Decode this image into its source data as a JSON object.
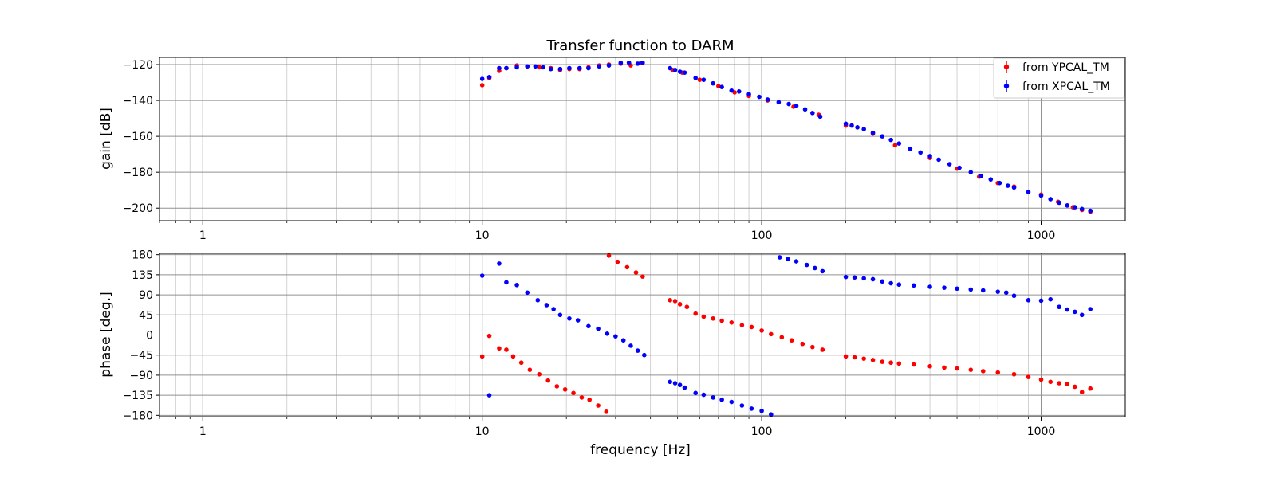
{
  "chart_data": {
    "type": "scatter",
    "title": "Transfer function to DARM",
    "xlabel": "frequency [Hz]",
    "xscale": "log",
    "xlim": [
      0.7,
      2000
    ],
    "x_ticks": [
      "1",
      "10",
      "100",
      "1000"
    ],
    "grid": true,
    "legend_position": "top-right",
    "legend": [
      {
        "label": "from YPCAL_TM",
        "color": "#ff0000"
      },
      {
        "label": "from XPCAL_TM",
        "color": "#0000ff"
      }
    ],
    "panels": [
      {
        "name": "gain",
        "ylabel": "gain [dB]",
        "ylim": [
          -207,
          -116
        ],
        "y_ticks": [
          -120,
          -140,
          -160,
          -180,
          -200
        ],
        "y_tick_labels": [
          "−120",
          "−140",
          "−160",
          "−180",
          "−200"
        ],
        "series": [
          {
            "name": "from YPCAL_TM",
            "color": "#ff0000",
            "points": [
              [
                10.0,
                -131.5
              ],
              [
                10.6,
                -127.5
              ],
              [
                11.5,
                -123.5
              ],
              [
                12.2,
                -122.0
              ],
              [
                13.3,
                -120.5
              ],
              [
                14.5,
                -121.0
              ],
              [
                16.0,
                -121.5
              ],
              [
                17.6,
                -122.0
              ],
              [
                19.0,
                -123.0
              ],
              [
                20.5,
                -122.5
              ],
              [
                22.3,
                -122.5
              ],
              [
                24.0,
                -121.5
              ],
              [
                26.2,
                -120.5
              ],
              [
                28.4,
                -120.0
              ],
              [
                31.3,
                -119.5
              ],
              [
                34.0,
                -120.5
              ],
              [
                37.0,
                -119.0
              ],
              [
                48.0,
                -123.0
              ],
              [
                52.0,
                -124.5
              ],
              [
                60.0,
                -128.5
              ],
              [
                70.0,
                -132.0
              ],
              [
                80.0,
                -135.5
              ],
              [
                90.0,
                -137.5
              ],
              [
                105.0,
                -140.0
              ],
              [
                130.0,
                -143.5
              ],
              [
                160.0,
                -148.0
              ],
              [
                200.0,
                -154.0
              ],
              [
                250.0,
                -158.5
              ],
              [
                300.0,
                -165.0
              ],
              [
                400.0,
                -172.0
              ],
              [
                500.0,
                -178.0
              ],
              [
                600.0,
                -182.5
              ],
              [
                700.0,
                -186.0
              ],
              [
                800.0,
                -188.0
              ],
              [
                1000.0,
                -192.5
              ],
              [
                1150.0,
                -196.5
              ],
              [
                1300.0,
                -199.5
              ],
              [
                1400.0,
                -201.0
              ],
              [
                1500.0,
                -202.0
              ]
            ]
          },
          {
            "name": "from XPCAL_TM",
            "color": "#0000ff",
            "points": [
              [
                10.0,
                -128.0
              ],
              [
                10.6,
                -127.0
              ],
              [
                11.5,
                -122.0
              ],
              [
                12.2,
                -122.0
              ],
              [
                13.3,
                -121.5
              ],
              [
                14.5,
                -121.0
              ],
              [
                15.5,
                -121.0
              ],
              [
                16.5,
                -121.5
              ],
              [
                17.6,
                -122.5
              ],
              [
                19.0,
                -122.5
              ],
              [
                20.5,
                -122.0
              ],
              [
                22.3,
                -122.0
              ],
              [
                24.0,
                -122.0
              ],
              [
                26.2,
                -121.0
              ],
              [
                28.4,
                -120.5
              ],
              [
                31.3,
                -119.0
              ],
              [
                33.5,
                -119.0
              ],
              [
                36.0,
                -119.5
              ],
              [
                37.5,
                -119.0
              ],
              [
                47.0,
                -122.0
              ],
              [
                49.0,
                -123.0
              ],
              [
                51.0,
                -124.0
              ],
              [
                53.0,
                -124.5
              ],
              [
                58.0,
                -127.5
              ],
              [
                62.0,
                -128.5
              ],
              [
                67.0,
                -130.5
              ],
              [
                72.0,
                -132.5
              ],
              [
                78.0,
                -134.5
              ],
              [
                83.0,
                -135.0
              ],
              [
                90.0,
                -136.5
              ],
              [
                98.0,
                -138.0
              ],
              [
                105.0,
                -139.5
              ],
              [
                115.0,
                -141.0
              ],
              [
                125.0,
                -142.0
              ],
              [
                133.0,
                -143.0
              ],
              [
                143.0,
                -145.0
              ],
              [
                152.0,
                -147.0
              ],
              [
                162.0,
                -149.0
              ],
              [
                200.0,
                -153.0
              ],
              [
                210.0,
                -154.0
              ],
              [
                220.0,
                -155.0
              ],
              [
                232.0,
                -156.0
              ],
              [
                250.0,
                -158.0
              ],
              [
                270.0,
                -160.0
              ],
              [
                290.0,
                -162.0
              ],
              [
                310.0,
                -164.0
              ],
              [
                340.0,
                -167.0
              ],
              [
                370.0,
                -169.0
              ],
              [
                400.0,
                -171.0
              ],
              [
                430.0,
                -173.0
              ],
              [
                470.0,
                -175.5
              ],
              [
                510.0,
                -177.5
              ],
              [
                560.0,
                -180.0
              ],
              [
                610.0,
                -182.0
              ],
              [
                660.0,
                -184.0
              ],
              [
                710.0,
                -186.0
              ],
              [
                760.0,
                -187.5
              ],
              [
                800.0,
                -188.5
              ],
              [
                900.0,
                -191.0
              ],
              [
                1000.0,
                -193.0
              ],
              [
                1080.0,
                -195.0
              ],
              [
                1160.0,
                -197.0
              ],
              [
                1240.0,
                -198.5
              ],
              [
                1320.0,
                -199.5
              ],
              [
                1400.0,
                -200.5
              ],
              [
                1500.0,
                -201.5
              ]
            ]
          }
        ]
      },
      {
        "name": "phase",
        "ylabel": "phase [deg.]",
        "ylim": [
          -183,
          183
        ],
        "y_ticks": [
          180,
          135,
          90,
          45,
          0,
          -45,
          -90,
          -135,
          -180
        ],
        "y_tick_labels": [
          "180",
          "135",
          "90",
          "45",
          "0",
          "−45",
          "−90",
          "−135",
          "−180"
        ],
        "series": [
          {
            "name": "from YPCAL_TM",
            "color": "#ff0000",
            "points": [
              [
                10.0,
                -48.0
              ],
              [
                10.6,
                -2.0
              ],
              [
                11.5,
                -30.0
              ],
              [
                12.2,
                -33.0
              ],
              [
                12.9,
                -48.0
              ],
              [
                13.8,
                -62.0
              ],
              [
                14.8,
                -78.0
              ],
              [
                16.0,
                -88.0
              ],
              [
                17.2,
                -102.0
              ],
              [
                18.5,
                -115.0
              ],
              [
                19.8,
                -122.0
              ],
              [
                21.2,
                -130.0
              ],
              [
                22.7,
                -140.0
              ],
              [
                24.2,
                -145.0
              ],
              [
                26.0,
                -158.0
              ],
              [
                27.8,
                -172.0
              ],
              [
                28.4,
                178.0
              ],
              [
                30.5,
                164.0
              ],
              [
                33.0,
                152.0
              ],
              [
                35.5,
                140.0
              ],
              [
                37.5,
                131.0
              ],
              [
                47.0,
                78.0
              ],
              [
                49.0,
                76.0
              ],
              [
                51.0,
                69.0
              ],
              [
                54.0,
                63.0
              ],
              [
                58.0,
                48.0
              ],
              [
                62.0,
                41.0
              ],
              [
                67.0,
                37.0
              ],
              [
                72.0,
                32.0
              ],
              [
                78.0,
                28.0
              ],
              [
                85.0,
                22.0
              ],
              [
                92.0,
                18.0
              ],
              [
                100.0,
                10.0
              ],
              [
                108.0,
                2.0
              ],
              [
                118.0,
                -5.0
              ],
              [
                128.0,
                -12.0
              ],
              [
                140.0,
                -20.0
              ],
              [
                152.0,
                -27.0
              ],
              [
                165.0,
                -33.0
              ],
              [
                200.0,
                -48.0
              ],
              [
                215.0,
                -50.0
              ],
              [
                232.0,
                -53.0
              ],
              [
                250.0,
                -56.0
              ],
              [
                270.0,
                -60.0
              ],
              [
                290.0,
                -62.0
              ],
              [
                310.0,
                -64.0
              ],
              [
                350.0,
                -66.0
              ],
              [
                400.0,
                -70.0
              ],
              [
                450.0,
                -73.0
              ],
              [
                500.0,
                -75.0
              ],
              [
                560.0,
                -78.0
              ],
              [
                620.0,
                -81.0
              ],
              [
                700.0,
                -84.0
              ],
              [
                800.0,
                -88.0
              ],
              [
                900.0,
                -94.0
              ],
              [
                1000.0,
                -100.0
              ],
              [
                1080.0,
                -105.0
              ],
              [
                1160.0,
                -108.0
              ],
              [
                1240.0,
                -110.0
              ],
              [
                1320.0,
                -116.0
              ],
              [
                1400.0,
                -128.0
              ],
              [
                1500.0,
                -120.0
              ]
            ]
          },
          {
            "name": "from XPCAL_TM",
            "color": "#0000ff",
            "points": [
              [
                10.0,
                133.0
              ],
              [
                10.6,
                -135.0
              ],
              [
                11.5,
                160.0
              ],
              [
                12.2,
                118.0
              ],
              [
                13.3,
                112.0
              ],
              [
                14.5,
                95.0
              ],
              [
                15.8,
                78.0
              ],
              [
                17.0,
                67.0
              ],
              [
                18.0,
                58.0
              ],
              [
                19.0,
                45.0
              ],
              [
                20.5,
                37.0
              ],
              [
                22.0,
                33.0
              ],
              [
                24.0,
                20.0
              ],
              [
                26.0,
                14.0
              ],
              [
                28.0,
                3.0
              ],
              [
                30.0,
                -3.0
              ],
              [
                32.0,
                -12.0
              ],
              [
                34.0,
                -24.0
              ],
              [
                36.0,
                -35.0
              ],
              [
                38.0,
                -45.0
              ],
              [
                47.0,
                -105.0
              ],
              [
                49.0,
                -108.0
              ],
              [
                51.0,
                -112.0
              ],
              [
                53.0,
                -118.0
              ],
              [
                58.0,
                -130.0
              ],
              [
                62.0,
                -134.0
              ],
              [
                67.0,
                -140.0
              ],
              [
                72.0,
                -145.0
              ],
              [
                78.0,
                -150.0
              ],
              [
                85.0,
                -158.0
              ],
              [
                92.0,
                -165.0
              ],
              [
                100.0,
                -170.0
              ],
              [
                108.0,
                -178.0
              ],
              [
                116.0,
                174.0
              ],
              [
                124.0,
                170.0
              ],
              [
                133.0,
                165.0
              ],
              [
                145.0,
                157.0
              ],
              [
                155.0,
                150.0
              ],
              [
                165.0,
                143.0
              ],
              [
                200.0,
                130.0
              ],
              [
                215.0,
                129.0
              ],
              [
                232.0,
                127.0
              ],
              [
                250.0,
                125.0
              ],
              [
                270.0,
                120.0
              ],
              [
                290.0,
                116.0
              ],
              [
                310.0,
                113.0
              ],
              [
                350.0,
                111.0
              ],
              [
                400.0,
                108.0
              ],
              [
                450.0,
                106.0
              ],
              [
                500.0,
                104.0
              ],
              [
                560.0,
                102.0
              ],
              [
                620.0,
                100.0
              ],
              [
                700.0,
                97.0
              ],
              [
                750.0,
                95.0
              ],
              [
                800.0,
                88.0
              ],
              [
                900.0,
                78.0
              ],
              [
                1000.0,
                77.0
              ],
              [
                1080.0,
                80.0
              ],
              [
                1160.0,
                63.0
              ],
              [
                1240.0,
                57.0
              ],
              [
                1320.0,
                52.0
              ],
              [
                1400.0,
                45.0
              ],
              [
                1500.0,
                58.0
              ]
            ]
          }
        ]
      }
    ]
  }
}
